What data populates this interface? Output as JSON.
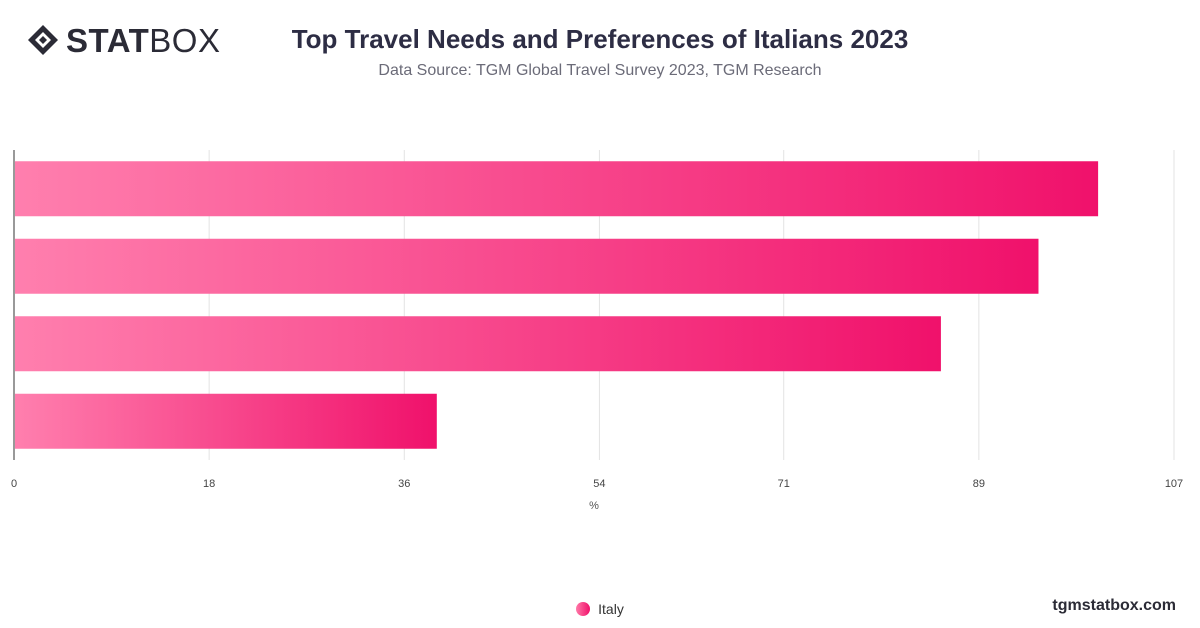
{
  "header": {
    "logo_text_bold": "STAT",
    "logo_text_light": "BOX",
    "logo_icon": "statbox-diamond-icon",
    "title": "Top Travel Needs and Preferences of Italians 2023",
    "subtitle": "Data Source: TGM Global Travel Survey 2023, TGM Research"
  },
  "footer": {
    "brand": "tgmstatbox.com"
  },
  "colors": {
    "bar_start": "#ff7fae",
    "bar_end": "#f0116b",
    "grid": "#e3e3e3",
    "axis": "#333333",
    "title": "#2d2d44"
  },
  "chart_data": {
    "type": "bar",
    "orientation": "horizontal",
    "categories": [
      "",
      "",
      "",
      ""
    ],
    "series": [
      {
        "name": "Italy",
        "values": [
          100,
          94.5,
          85.5,
          39
        ]
      }
    ],
    "xlabel": "%",
    "ylabel": "",
    "xlim": [
      0,
      107
    ],
    "x_ticks": [
      "0",
      "18",
      "36",
      "54",
      "71",
      "89",
      "107"
    ],
    "grid": true,
    "legend_position": "bottom-center"
  }
}
